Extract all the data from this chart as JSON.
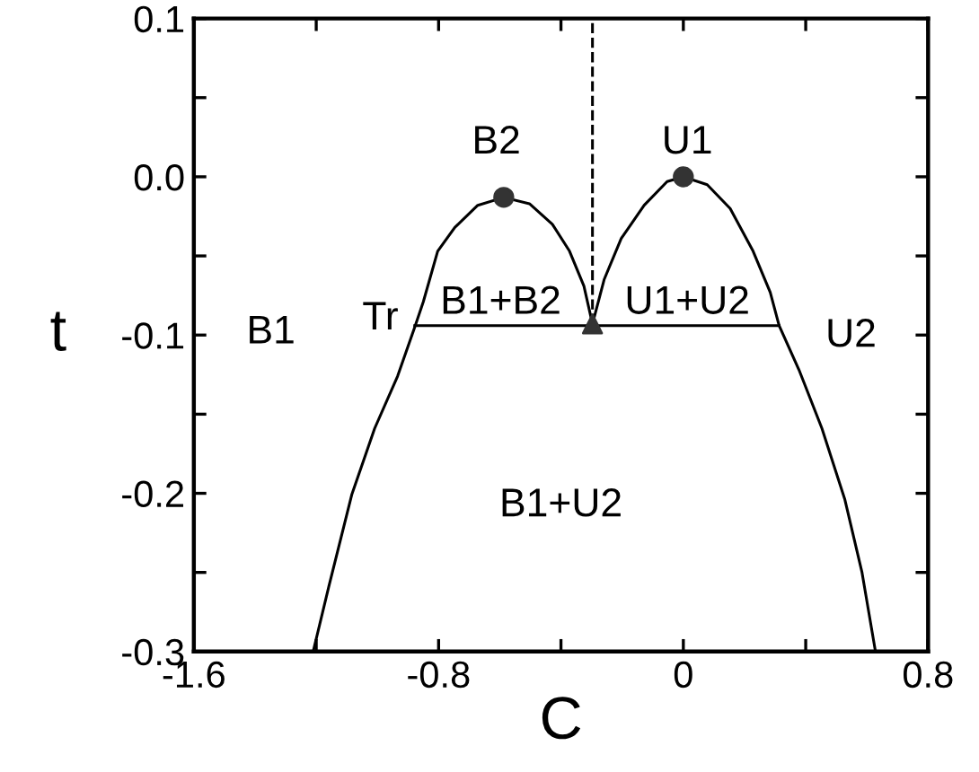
{
  "chart_data": {
    "type": "line",
    "xlabel": "C",
    "ylabel": "t",
    "xlim": [
      -1.6,
      0.8
    ],
    "ylim": [
      -0.3,
      0.1
    ],
    "xticks": [
      -1.6,
      {
        "value": -1.2,
        "label": null
      },
      -0.8,
      {
        "value": -0.4,
        "label": null
      },
      0,
      {
        "value": 0.4,
        "label": null
      },
      0.8
    ],
    "yticks": [
      -0.3,
      {
        "value": -0.25,
        "label": null
      },
      -0.2,
      {
        "value": -0.15,
        "label": null
      },
      -0.1,
      {
        "value": -0.05,
        "label": null
      },
      {
        "value": 0,
        "label": "0.0"
      },
      {
        "value": 0.05,
        "label": null
      },
      0.1
    ],
    "grid": false,
    "legend": false,
    "series": [
      {
        "color": "#000000",
        "marker": "none",
        "line_style": "solid",
        "x": [
          -1.21,
          -1.159,
          -1.084,
          -1.009,
          -0.934,
          -0.878,
          -0.85,
          -0.803,
          -0.747,
          -0.672,
          -0.587,
          -0.503,
          -0.428,
          -0.372,
          -0.325,
          -0.297,
          -0.259,
          -0.203,
          -0.128,
          -0.053,
          0.0,
          0.078,
          0.153,
          0.228,
          0.284,
          0.313,
          0.378,
          0.453,
          0.528,
          0.584,
          0.628
        ],
        "values": [
          -0.3,
          -0.259,
          -0.201,
          -0.159,
          -0.126,
          -0.095,
          -0.079,
          -0.047,
          -0.032,
          -0.018,
          -0.013,
          -0.017,
          -0.03,
          -0.047,
          -0.069,
          -0.093,
          -0.065,
          -0.039,
          -0.018,
          -0.003,
          0.0,
          -0.005,
          -0.02,
          -0.047,
          -0.073,
          -0.094,
          -0.122,
          -0.159,
          -0.204,
          -0.25,
          -0.3
        ]
      },
      {
        "color": "#000000",
        "marker": "none",
        "line_style": "solid",
        "x": [
          -0.878,
          0.313
        ],
        "values": [
          -0.094,
          -0.094
        ]
      },
      {
        "color": "#000000",
        "marker": "none",
        "line_style": "dashed",
        "x": [
          -0.297,
          -0.297
        ],
        "values": [
          -0.093,
          0.1
        ]
      },
      {
        "type": "scatter",
        "color": "#333333",
        "marker": "circle",
        "x": [
          -0.587,
          0.0
        ],
        "values": [
          -0.013,
          0.0
        ]
      },
      {
        "type": "scatter",
        "color": "#333333",
        "marker": "triangle",
        "x": [
          -0.297
        ],
        "values": [
          -0.093
        ]
      }
    ],
    "annotations": [
      "B1",
      "B2",
      "U1",
      "U2",
      "Tr",
      "B1+B2",
      "U1+U2",
      "B1+U2"
    ]
  }
}
